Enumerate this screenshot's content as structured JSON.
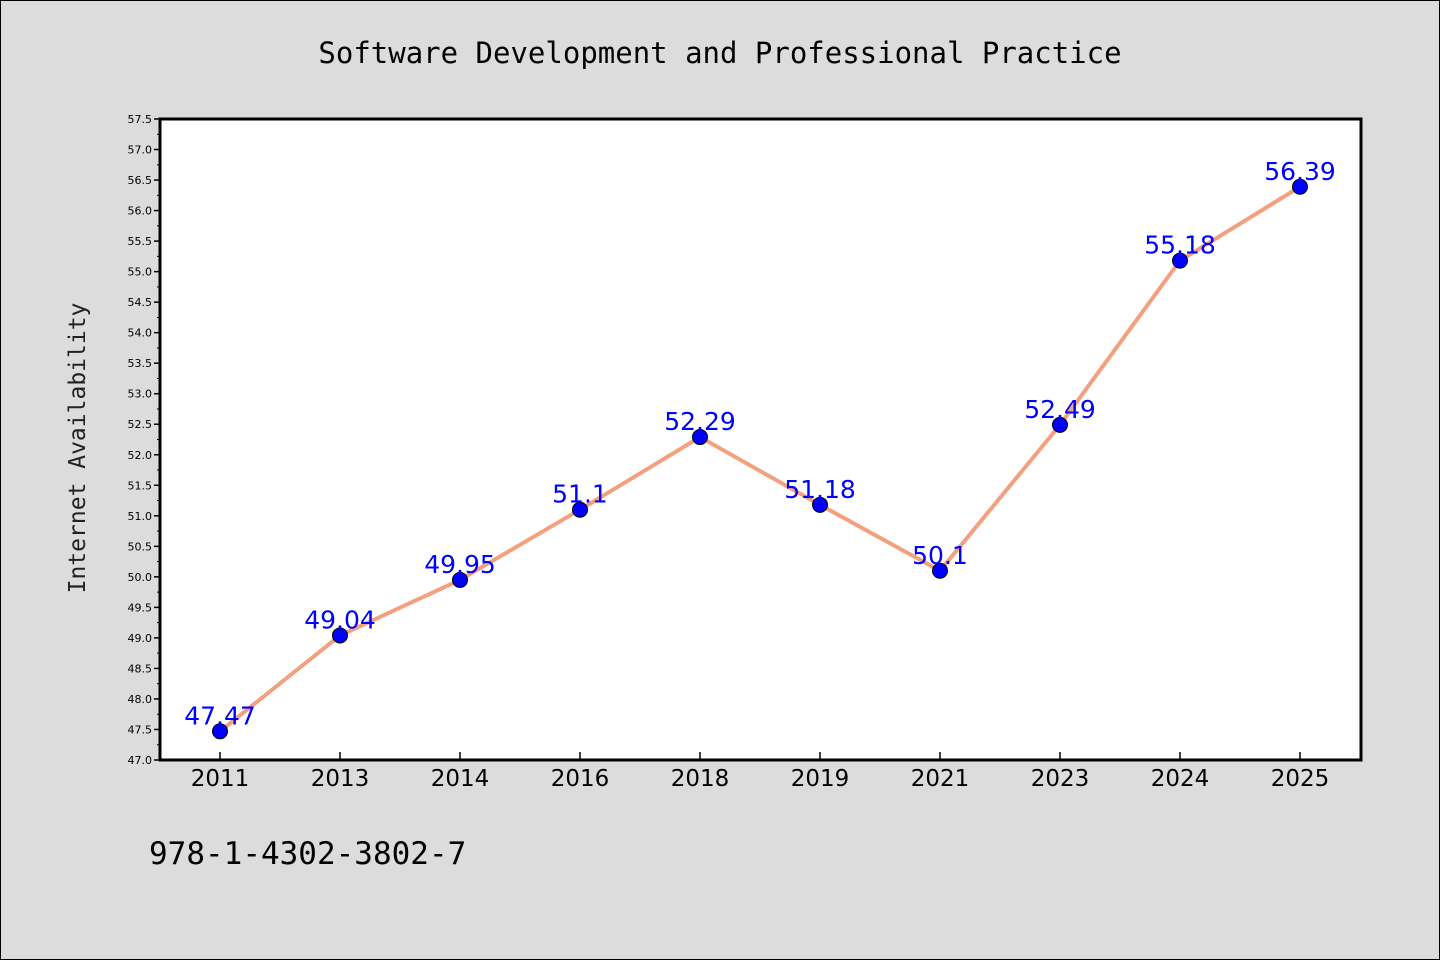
{
  "isbn": "978-1-4302-3802-7",
  "chart_data": {
    "type": "line",
    "title": "Software Development and Professional Practice",
    "xlabel": "",
    "ylabel": "Internet Availability",
    "categories": [
      "2011",
      "2013",
      "2014",
      "2016",
      "2018",
      "2019",
      "2021",
      "2023",
      "2024",
      "2025"
    ],
    "series": [
      {
        "values": [
          47.47,
          49.04,
          49.95,
          51.1,
          52.29,
          51.18,
          50.1,
          52.49,
          55.18,
          56.39
        ],
        "data_labels": [
          "47.47",
          "49.04",
          "49.95",
          "51.1",
          "52.29",
          "51.18",
          "50.1",
          "52.49",
          "55.18",
          "56.39"
        ],
        "line_color": "#f4a07f",
        "marker_color": "#0000ff"
      }
    ],
    "ylim": [
      47.0,
      57.5
    ],
    "yticks": [
      "47.0",
      "47.5",
      "48.0",
      "48.5",
      "49.0",
      "49.5",
      "50.0",
      "50.5",
      "51.0",
      "51.5",
      "52.0",
      "52.5",
      "53.0",
      "53.5",
      "54.0",
      "54.5",
      "55.0",
      "55.5",
      "56.0",
      "56.5",
      "57.0",
      "57.5"
    ],
    "grid": false,
    "legend": "none",
    "colors": {
      "background": "#dcdcdc",
      "plot_background": "#ffffff",
      "data_label": "#0000ff"
    }
  }
}
